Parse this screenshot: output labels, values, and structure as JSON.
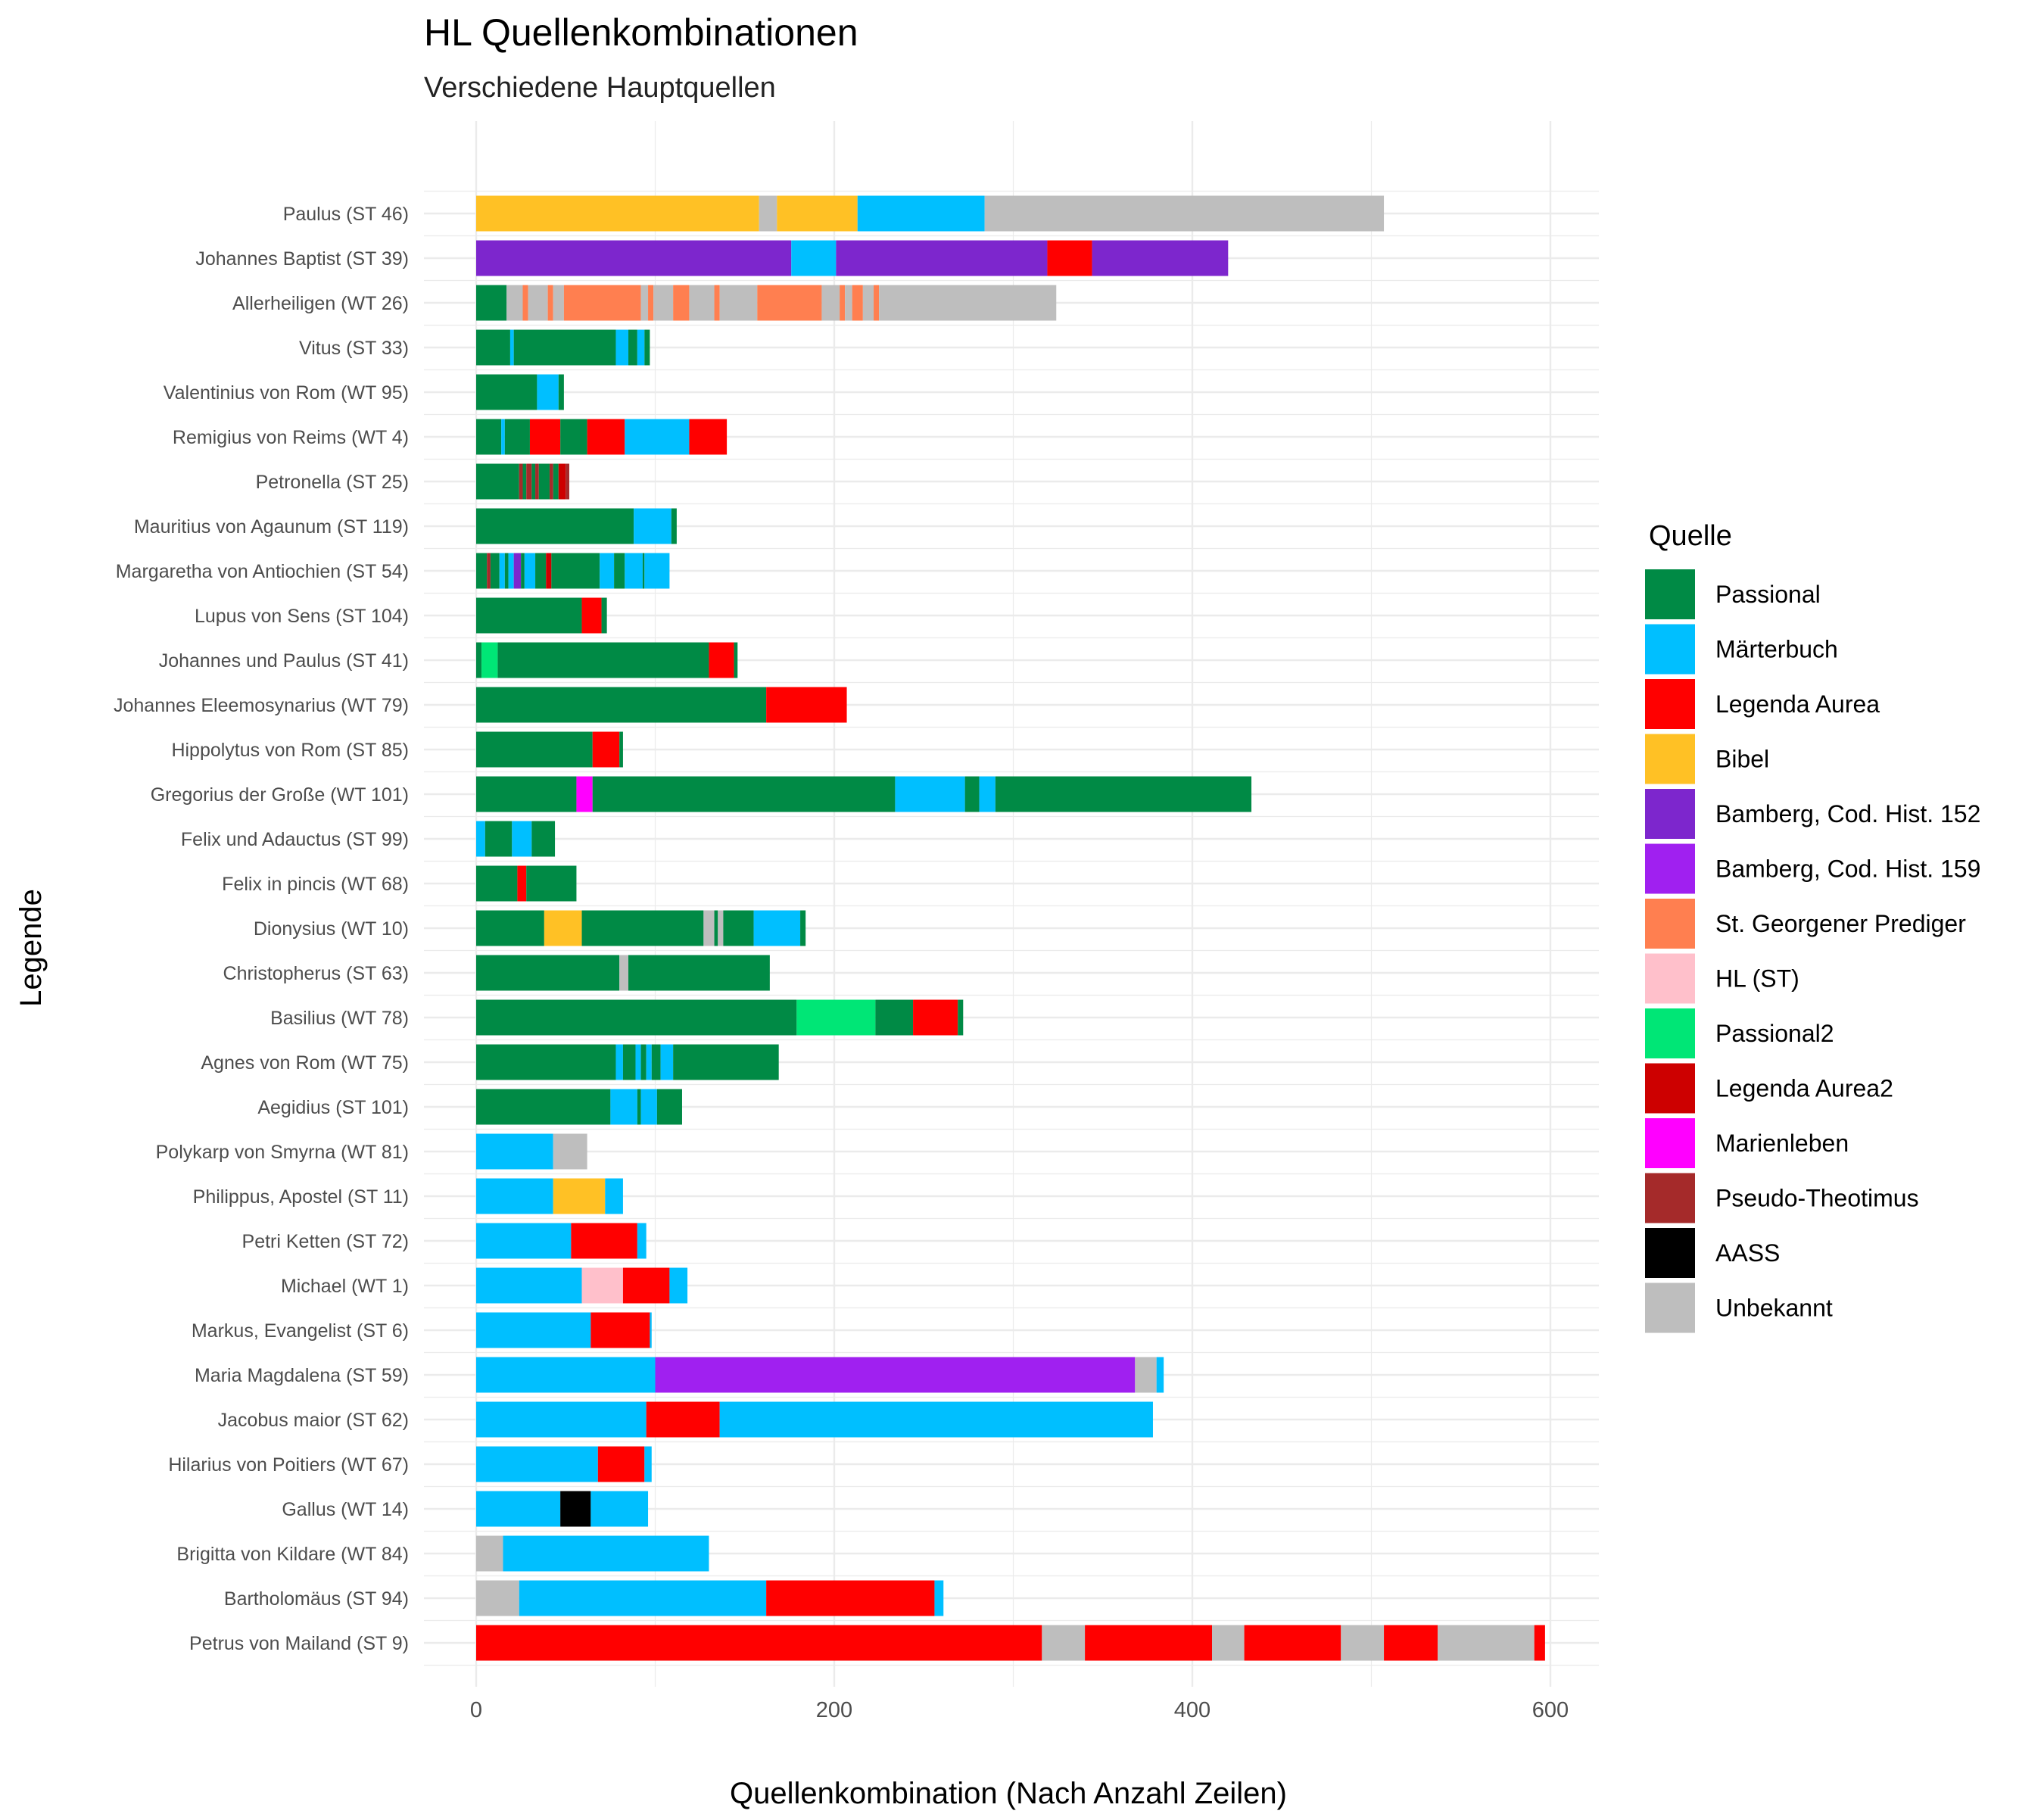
{
  "chart_data": {
    "type": "bar",
    "orientation": "horizontal",
    "stacked": true,
    "title": "HL Quellenkombinationen",
    "subtitle": "Verschiedene Hauptquellen",
    "xlabel": "Quellenkombination (Nach Anzahl Zeilen)",
    "ylabel": "Legende",
    "xlim": [
      -30,
      625
    ],
    "x_ticks": [
      0,
      200,
      400,
      600
    ],
    "grid": true,
    "legend": {
      "title": "Quelle",
      "position": "right",
      "entries": [
        {
          "name": "Passional",
          "color": "#008a45"
        },
        {
          "name": "Märterbuch",
          "color": "#00bfff"
        },
        {
          "name": "Legenda Aurea",
          "color": "#ff0000"
        },
        {
          "name": "Bibel",
          "color": "#ffc125"
        },
        {
          "name": "Bamberg, Cod. Hist. 152",
          "color": "#7d26cd"
        },
        {
          "name": "Bamberg, Cod. Hist. 159",
          "color": "#a020f0"
        },
        {
          "name": "St. Georgener Prediger",
          "color": "#ff7f50"
        },
        {
          "name": "HL (ST)",
          "color": "#ffc0cb"
        },
        {
          "name": "Passional2",
          "color": "#00e676"
        },
        {
          "name": "Legenda Aurea2",
          "color": "#cd0000"
        },
        {
          "name": "Marienleben",
          "color": "#ff00ff"
        },
        {
          "name": "Pseudo-Theotimus",
          "color": "#a52a2a"
        },
        {
          "name": "AASS",
          "color": "#000000"
        },
        {
          "name": "Unbekannt",
          "color": "#bebebe"
        }
      ]
    },
    "categories": [
      "Paulus (ST 46)",
      "Johannes Baptist (ST 39)",
      "Allerheiligen (WT 26)",
      "Vitus (ST 33)",
      "Valentinius von Rom (WT 95)",
      "Remigius von Reims (WT 4)",
      "Petronella (ST 25)",
      "Mauritius von Agaunum (ST 119)",
      "Margaretha von Antiochien  (ST 54)",
      "Lupus von Sens (ST 104)",
      "Johannes und Paulus (ST 41)",
      "Johannes Eleemosynarius (WT 79)",
      "Hippolytus von Rom (ST 85)",
      "Gregorius der Große (WT 101)",
      "Felix und Adauctus (ST 99)",
      "Felix in pincis (WT 68)",
      "Dionysius (WT 10)",
      "Christopherus (ST 63)",
      "Basilius (WT 78)",
      "Agnes von Rom (WT 75)",
      "Aegidius (ST 101)",
      "Polykarp von Smyrna (WT 81)",
      "Philippus, Apostel (ST 11)",
      "Petri Ketten (ST 72)",
      "Michael (WT 1)",
      "Markus, Evangelist (ST 6)",
      "Maria Magdalena (ST 59)",
      "Jacobus maior (ST 62)",
      "Hilarius von Poitiers (WT 67)",
      "Gallus (WT 14)",
      "Brigitta von Kildare (WT 84)",
      "Bartholomäus (ST 94)",
      "Petrus von Mailand (ST 9)"
    ],
    "bars": [
      [
        [
          "Bibel",
          158
        ],
        [
          "Unbekannt",
          10
        ],
        [
          "Bibel",
          45
        ],
        [
          "Märterbuch",
          71
        ],
        [
          "Unbekannt",
          223
        ]
      ],
      [
        [
          "Bamberg, Cod. Hist. 152",
          176
        ],
        [
          "Märterbuch",
          25
        ],
        [
          "Bamberg, Cod. Hist. 152",
          118
        ],
        [
          "Legenda Aurea",
          25
        ],
        [
          "Bamberg, Cod. Hist. 152",
          76
        ]
      ],
      [
        [
          "Passional",
          17
        ],
        [
          "Unbekannt",
          9
        ],
        [
          "St. Georgener Prediger",
          3
        ],
        [
          "Unbekannt",
          11
        ],
        [
          "St. Georgener Prediger",
          3
        ],
        [
          "Unbekannt",
          6
        ],
        [
          "St. Georgener Prediger",
          43
        ],
        [
          "Unbekannt",
          4
        ],
        [
          "St. Georgener Prediger",
          3
        ],
        [
          "Unbekannt",
          11
        ],
        [
          "St. Georgener Prediger",
          9
        ],
        [
          "Unbekannt",
          14
        ],
        [
          "St. Georgener Prediger",
          3
        ],
        [
          "Unbekannt",
          21
        ],
        [
          "St. Georgener Prediger",
          36
        ],
        [
          "Unbekannt",
          10
        ],
        [
          "St. Georgener Prediger",
          3
        ],
        [
          "Unbekannt",
          4
        ],
        [
          "St. Georgener Prediger",
          6
        ],
        [
          "Unbekannt",
          6
        ],
        [
          "St. Georgener Prediger",
          3
        ],
        [
          "Unbekannt",
          99
        ]
      ],
      [
        [
          "Passional",
          19
        ],
        [
          "Märterbuch",
          2
        ],
        [
          "Passional",
          57
        ],
        [
          "Märterbuch",
          7
        ],
        [
          "Passional",
          5
        ],
        [
          "Märterbuch",
          4
        ],
        [
          "Passional",
          3
        ]
      ],
      [
        [
          "Passional",
          34
        ],
        [
          "Märterbuch",
          12
        ],
        [
          "Passional",
          3
        ]
      ],
      [
        [
          "Passional",
          14
        ],
        [
          "Märterbuch",
          2
        ],
        [
          "Passional",
          14
        ],
        [
          "Legenda Aurea",
          17
        ],
        [
          "Passional",
          15
        ],
        [
          "Legenda Aurea",
          21
        ],
        [
          "Märterbuch",
          36
        ],
        [
          "Legenda Aurea",
          21
        ]
      ],
      [
        [
          "Passional",
          24
        ],
        [
          "Pseudo-Theotimus",
          2
        ],
        [
          "Passional",
          2
        ],
        [
          "Pseudo-Theotimus",
          3
        ],
        [
          "Passional",
          2
        ],
        [
          "Pseudo-Theotimus",
          2
        ],
        [
          "Passional",
          6
        ],
        [
          "Pseudo-Theotimus",
          2
        ],
        [
          "Passional",
          3
        ],
        [
          "Legenda Aurea2",
          4
        ],
        [
          "Pseudo-Theotimus",
          2
        ]
      ],
      [
        [
          "Passional",
          88
        ],
        [
          "Märterbuch",
          21
        ],
        [
          "Passional",
          3
        ]
      ],
      [
        [
          "Passional",
          6
        ],
        [
          "Pseudo-Theotimus",
          2
        ],
        [
          "Passional",
          5
        ],
        [
          "Märterbuch",
          3
        ],
        [
          "Passional",
          2
        ],
        [
          "Märterbuch",
          3
        ],
        [
          "Bamberg, Cod. Hist. 152",
          4
        ],
        [
          "Passional",
          2
        ],
        [
          "Märterbuch",
          6
        ],
        [
          "Passional",
          6
        ],
        [
          "Legenda Aurea2",
          3
        ],
        [
          "Passional",
          27
        ],
        [
          "Märterbuch",
          8
        ],
        [
          "Passional",
          6
        ],
        [
          "Märterbuch",
          10
        ],
        [
          "Passional",
          1
        ],
        [
          "Märterbuch",
          14
        ]
      ],
      [
        [
          "Passional",
          59
        ],
        [
          "Legenda Aurea",
          11
        ],
        [
          "Passional",
          3
        ]
      ],
      [
        [
          "Passional",
          3
        ],
        [
          "Passional2",
          9
        ],
        [
          "Passional",
          118
        ],
        [
          "Legenda Aurea",
          14
        ],
        [
          "Passional",
          2
        ]
      ],
      [
        [
          "Passional",
          162
        ],
        [
          "Legenda Aurea",
          45
        ]
      ],
      [
        [
          "Passional",
          65
        ],
        [
          "Legenda Aurea",
          15
        ],
        [
          "Passional",
          2
        ]
      ],
      [
        [
          "Passional",
          56
        ],
        [
          "Marienleben",
          9
        ],
        [
          "Passional",
          169
        ],
        [
          "Märterbuch",
          39
        ],
        [
          "Passional",
          8
        ],
        [
          "Märterbuch",
          9
        ],
        [
          "Passional",
          143
        ]
      ],
      [
        [
          "Märterbuch",
          5
        ],
        [
          "Passional",
          15
        ],
        [
          "Märterbuch",
          11
        ],
        [
          "Passional",
          13
        ]
      ],
      [
        [
          "Passional",
          23
        ],
        [
          "Legenda Aurea",
          5
        ],
        [
          "Passional",
          28
        ]
      ],
      [
        [
          "Passional",
          38
        ],
        [
          "Bibel",
          21
        ],
        [
          "Passional",
          68
        ],
        [
          "Unbekannt",
          6
        ],
        [
          "Passional",
          2
        ],
        [
          "Unbekannt",
          3
        ],
        [
          "Passional",
          17
        ],
        [
          "Märterbuch",
          26
        ],
        [
          "Passional",
          3
        ]
      ],
      [
        [
          "Passional",
          80
        ],
        [
          "Unbekannt",
          5
        ],
        [
          "Passional",
          79
        ]
      ],
      [
        [
          "Passional",
          179
        ],
        [
          "Passional2",
          44
        ],
        [
          "Passional",
          21
        ],
        [
          "Legenda Aurea",
          25
        ],
        [
          "Passional",
          3
        ]
      ],
      [
        [
          "Passional",
          78
        ],
        [
          "Märterbuch",
          4
        ],
        [
          "Passional",
          7
        ],
        [
          "Märterbuch",
          3
        ],
        [
          "Passional",
          3
        ],
        [
          "Märterbuch",
          3
        ],
        [
          "Passional",
          5
        ],
        [
          "Märterbuch",
          7
        ],
        [
          "Passional",
          59
        ]
      ],
      [
        [
          "Passional",
          75
        ],
        [
          "Märterbuch",
          15
        ],
        [
          "Passional",
          2
        ],
        [
          "Märterbuch",
          9
        ],
        [
          "Passional",
          14
        ]
      ],
      [
        [
          "Märterbuch",
          43
        ],
        [
          "Unbekannt",
          19
        ]
      ],
      [
        [
          "Märterbuch",
          43
        ],
        [
          "Bibel",
          29
        ],
        [
          "Märterbuch",
          10
        ]
      ],
      [
        [
          "Märterbuch",
          53
        ],
        [
          "Legenda Aurea",
          37
        ],
        [
          "Märterbuch",
          5
        ]
      ],
      [
        [
          "Märterbuch",
          59
        ],
        [
          "HL (ST)",
          23
        ],
        [
          "Legenda Aurea",
          26
        ],
        [
          "Märterbuch",
          10
        ]
      ],
      [
        [
          "Märterbuch",
          64
        ],
        [
          "Legenda Aurea",
          33
        ],
        [
          "Märterbuch",
          1
        ]
      ],
      [
        [
          "Märterbuch",
          100
        ],
        [
          "Bamberg, Cod. Hist. 159",
          268
        ],
        [
          "Unbekannt",
          12
        ],
        [
          "Märterbuch",
          4
        ]
      ],
      [
        [
          "Märterbuch",
          95
        ],
        [
          "Legenda Aurea",
          41
        ],
        [
          "Märterbuch",
          242
        ]
      ],
      [
        [
          "Märterbuch",
          68
        ],
        [
          "Legenda Aurea",
          26
        ],
        [
          "Märterbuch",
          4
        ]
      ],
      [
        [
          "Märterbuch",
          47
        ],
        [
          "AASS",
          17
        ],
        [
          "Märterbuch",
          32
        ]
      ],
      [
        [
          "Unbekannt",
          15
        ],
        [
          "Märterbuch",
          115
        ]
      ],
      [
        [
          "Unbekannt",
          24
        ],
        [
          "Märterbuch",
          138
        ],
        [
          "Legenda Aurea",
          94
        ],
        [
          "Märterbuch",
          5
        ]
      ],
      [
        [
          "Legenda Aurea",
          316
        ],
        [
          "Unbekannt",
          24
        ],
        [
          "Legenda Aurea",
          71
        ],
        [
          "Unbekannt",
          18
        ],
        [
          "Legenda Aurea",
          54
        ],
        [
          "Unbekannt",
          24
        ],
        [
          "Legenda Aurea",
          30
        ],
        [
          "Unbekannt",
          54
        ],
        [
          "Legenda Aurea",
          6
        ]
      ]
    ]
  }
}
